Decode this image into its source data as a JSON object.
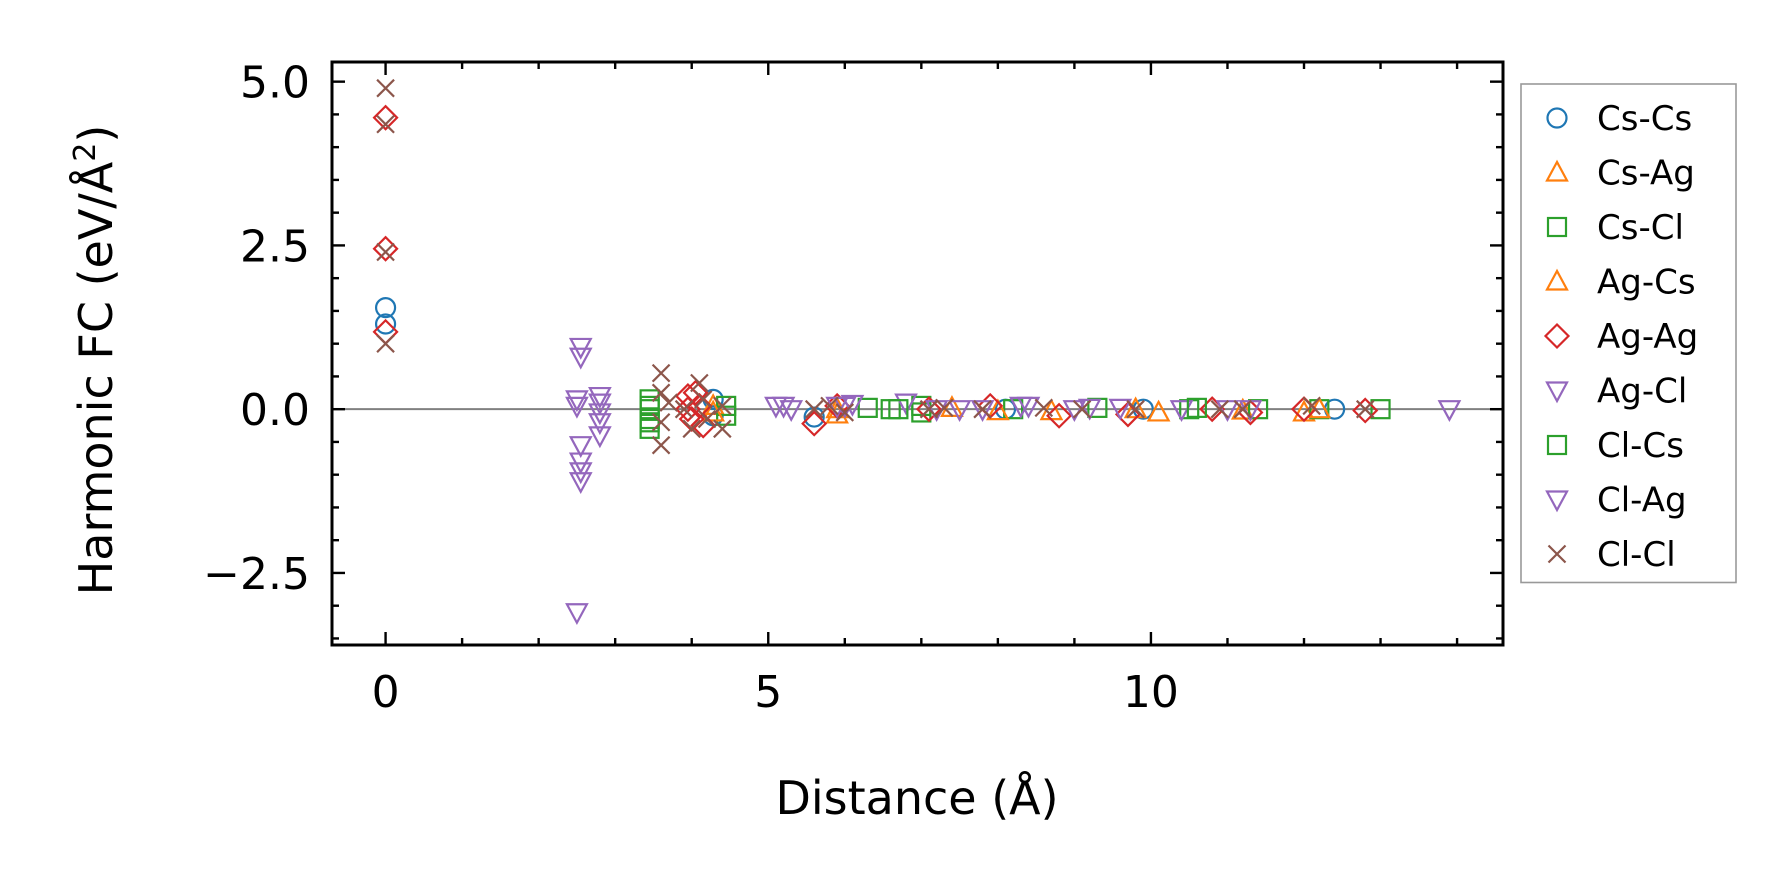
{
  "chart_data": {
    "type": "scatter",
    "xlabel": "Distance (Å)",
    "ylabel": "Harmonic FC (eV/Å",
    "ylabel_superscript": "2",
    "ylabel_close": ")",
    "xlim": [
      -0.7,
      14.6
    ],
    "ylim": [
      -3.6,
      5.3
    ],
    "x_ticks": [
      0,
      5,
      10
    ],
    "x_tick_labels": [
      "0",
      "5",
      "10"
    ],
    "y_ticks": [
      -2.5,
      0,
      2.5,
      5
    ],
    "y_tick_labels": [
      "−2.5",
      "0.0",
      "2.5",
      "5.0"
    ],
    "x_minor_step": 1,
    "y_minor_step": 0.5,
    "zero_line": 0,
    "grid": false,
    "legend_position": "outside-right",
    "series": [
      {
        "name": "Cs-Cs",
        "marker": "circle",
        "color": "#1f77b4",
        "points": [
          [
            0,
            1.55
          ],
          [
            0,
            1.3
          ],
          [
            4.28,
            0.15
          ],
          [
            4.28,
            -0.1
          ],
          [
            5.6,
            -0.12
          ],
          [
            8.1,
            0.0
          ],
          [
            9.9,
            0.0
          ],
          [
            12.4,
            0.0
          ]
        ]
      },
      {
        "name": "Cs-Ag",
        "marker": "triangle-up",
        "color": "#ff7f0e",
        "points": [
          [
            4.28,
            0.05
          ],
          [
            5.9,
            -0.08
          ],
          [
            7.4,
            0.02
          ],
          [
            8.7,
            -0.03
          ],
          [
            9.8,
            0.0
          ],
          [
            11.2,
            -0.02
          ],
          [
            12.0,
            -0.05
          ]
        ]
      },
      {
        "name": "Cs-Cl",
        "marker": "square",
        "color": "#2ca02c",
        "points": [
          [
            3.45,
            0.15
          ],
          [
            3.45,
            0.0
          ],
          [
            3.45,
            -0.15
          ],
          [
            3.45,
            -0.3
          ],
          [
            4.45,
            0.05
          ],
          [
            4.45,
            -0.1
          ],
          [
            6.3,
            0.02
          ],
          [
            6.6,
            0.0
          ],
          [
            7.0,
            0.05
          ],
          [
            7.0,
            -0.05
          ],
          [
            8.2,
            0.0
          ],
          [
            9.3,
            0.02
          ],
          [
            10.5,
            0.0
          ],
          [
            11.4,
            0.0
          ],
          [
            12.2,
            0.0
          ],
          [
            13.0,
            0.0
          ]
        ]
      },
      {
        "name": "Ag-Cs",
        "marker": "triangle-up",
        "color": "#ff7f0e",
        "points": [
          [
            4.28,
            -0.05
          ],
          [
            5.9,
            0.0
          ],
          [
            8.0,
            -0.03
          ],
          [
            10.1,
            -0.05
          ],
          [
            12.2,
            0.0
          ]
        ]
      },
      {
        "name": "Ag-Ag",
        "marker": "diamond",
        "color": "#d62728",
        "points": [
          [
            0,
            4.45
          ],
          [
            0,
            2.45
          ],
          [
            0,
            1.18
          ],
          [
            3.95,
            0.2
          ],
          [
            3.95,
            0.0
          ],
          [
            4.0,
            -0.15
          ],
          [
            4.05,
            0.25
          ],
          [
            4.1,
            0.05
          ],
          [
            4.15,
            -0.25
          ],
          [
            5.6,
            -0.22
          ],
          [
            5.9,
            0.05
          ],
          [
            7.1,
            0.0
          ],
          [
            7.9,
            0.05
          ],
          [
            8.8,
            -0.1
          ],
          [
            9.7,
            -0.08
          ],
          [
            10.8,
            0.0
          ],
          [
            11.3,
            -0.05
          ],
          [
            12.0,
            0.0
          ],
          [
            12.8,
            -0.02
          ]
        ]
      },
      {
        "name": "Ag-Cl",
        "marker": "triangle-down",
        "color": "#9467bd",
        "points": [
          [
            2.5,
            0.15
          ],
          [
            2.5,
            -3.1
          ],
          [
            2.55,
            0.95
          ],
          [
            2.55,
            0.8
          ],
          [
            2.55,
            -0.55
          ],
          [
            2.55,
            -0.8
          ],
          [
            2.55,
            -0.95
          ],
          [
            2.55,
            -1.1
          ],
          [
            2.8,
            0.2
          ],
          [
            2.8,
            -0.05
          ],
          [
            2.8,
            -0.2
          ],
          [
            2.8,
            -0.4
          ],
          [
            5.1,
            0.05
          ],
          [
            5.3,
            0.0
          ],
          [
            5.9,
            0.05
          ],
          [
            6.1,
            0.08
          ],
          [
            6.8,
            0.1
          ],
          [
            7.2,
            0.0
          ],
          [
            7.8,
            0.0
          ],
          [
            8.4,
            0.05
          ],
          [
            9.0,
            0.0
          ],
          [
            9.6,
            0.02
          ],
          [
            10.4,
            0.0
          ],
          [
            11.3,
            0.0
          ],
          [
            13.9,
            0.0
          ]
        ]
      },
      {
        "name": "Cl-Cs",
        "marker": "square",
        "color": "#2ca02c",
        "points": [
          [
            3.45,
            0.05
          ],
          [
            3.45,
            -0.2
          ],
          [
            6.7,
            0.0
          ],
          [
            10.6,
            0.02
          ]
        ]
      },
      {
        "name": "Cl-Ag",
        "marker": "triangle-down",
        "color": "#9467bd",
        "points": [
          [
            2.5,
            0.05
          ],
          [
            2.8,
            0.1
          ],
          [
            5.2,
            0.05
          ],
          [
            6.0,
            0.05
          ],
          [
            7.5,
            0.0
          ],
          [
            8.3,
            0.05
          ],
          [
            9.2,
            0.02
          ],
          [
            11.0,
            0.0
          ]
        ]
      },
      {
        "name": "Cl-Cl",
        "marker": "x",
        "color": "#8c564b",
        "points": [
          [
            0,
            4.9
          ],
          [
            0,
            4.35
          ],
          [
            0,
            2.4
          ],
          [
            0,
            1.0
          ],
          [
            3.6,
            0.55
          ],
          [
            3.6,
            0.25
          ],
          [
            3.6,
            -0.2
          ],
          [
            3.6,
            -0.55
          ],
          [
            3.7,
            0.1
          ],
          [
            3.9,
            0.0
          ],
          [
            4.0,
            -0.3
          ],
          [
            4.1,
            0.4
          ],
          [
            4.15,
            0.15
          ],
          [
            4.2,
            -0.15
          ],
          [
            4.4,
            0.05
          ],
          [
            4.4,
            -0.3
          ],
          [
            5.6,
            0.0
          ],
          [
            5.8,
            0.05
          ],
          [
            6.0,
            -0.05
          ],
          [
            7.1,
            0.0
          ],
          [
            7.3,
            0.02
          ],
          [
            7.8,
            0.0
          ],
          [
            8.6,
            0.02
          ],
          [
            9.1,
            0.0
          ],
          [
            9.8,
            0.0
          ],
          [
            10.9,
            0.0
          ],
          [
            11.2,
            0.0
          ],
          [
            12.1,
            0.05
          ],
          [
            12.8,
            0.0
          ]
        ]
      }
    ]
  }
}
